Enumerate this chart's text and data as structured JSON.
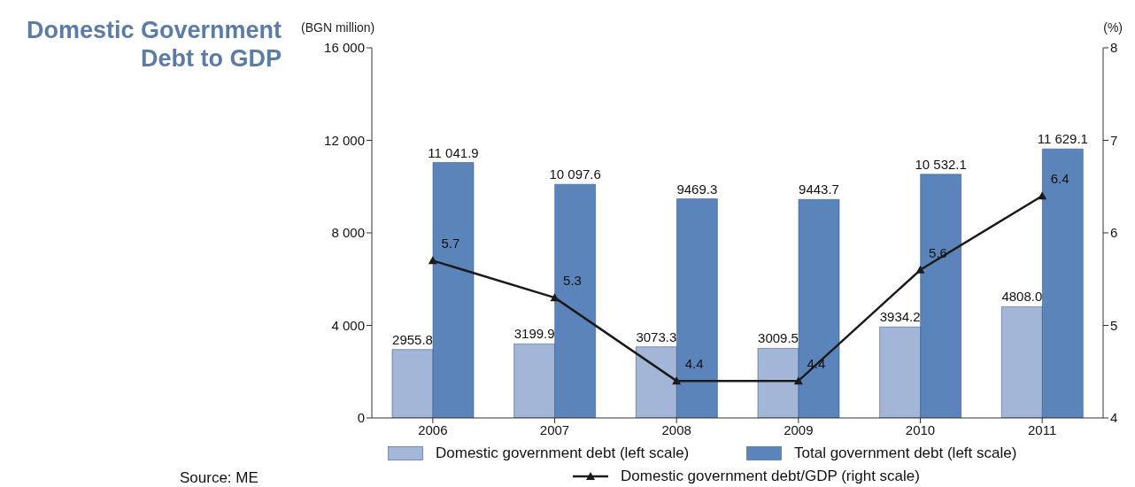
{
  "chart_data": {
    "type": "bar",
    "title": "Domestic Government Debt to GDP",
    "ylabel": "(BGN million)",
    "y2label": "(%)",
    "categories": [
      "2006",
      "2007",
      "2008",
      "2009",
      "2010",
      "2011"
    ],
    "series": [
      {
        "name": "Domestic government debt (left scale)",
        "color": "#a3b6d8",
        "values": [
          2955.8,
          3199.9,
          3073.3,
          3009.5,
          3934.2,
          4808.0
        ],
        "value_labels": [
          "2955.8",
          "3199.9",
          "3073.3",
          "3009.5",
          "3934.2",
          "4808.0"
        ]
      },
      {
        "name": "Total government debt (left scale)",
        "color": "#5b85ba",
        "values": [
          11041.9,
          10097.6,
          9469.3,
          9443.7,
          10532.1,
          11629.1
        ],
        "value_labels": [
          "11 041.9",
          "10 097.6",
          "9469.3",
          "9443.7",
          "10 532.1",
          "11 629.1"
        ]
      },
      {
        "name": "Domestic government debt/GDP (right scale)",
        "type": "line",
        "axis": "y2",
        "color": "#1a1a1a",
        "marker": "triangle",
        "values": [
          5.7,
          5.3,
          4.4,
          4.4,
          5.6,
          6.4
        ],
        "value_labels": [
          "5.7",
          "5.3",
          "4.4",
          "4.4",
          "5.6",
          "6.4"
        ]
      }
    ],
    "ylim": [
      0,
      16000
    ],
    "yticks": [
      {
        "value": 0,
        "label": "0"
      },
      {
        "value": 4000,
        "label": "4 000"
      },
      {
        "value": 8000,
        "label": "8 000"
      },
      {
        "value": 12000,
        "label": "12 000"
      },
      {
        "value": 16000,
        "label": "16 000"
      }
    ],
    "y2lim": [
      4,
      8
    ],
    "y2ticks": [
      4,
      5,
      6,
      7,
      8
    ],
    "legend": "bottom",
    "annotations": [
      "Source: ME"
    ]
  }
}
